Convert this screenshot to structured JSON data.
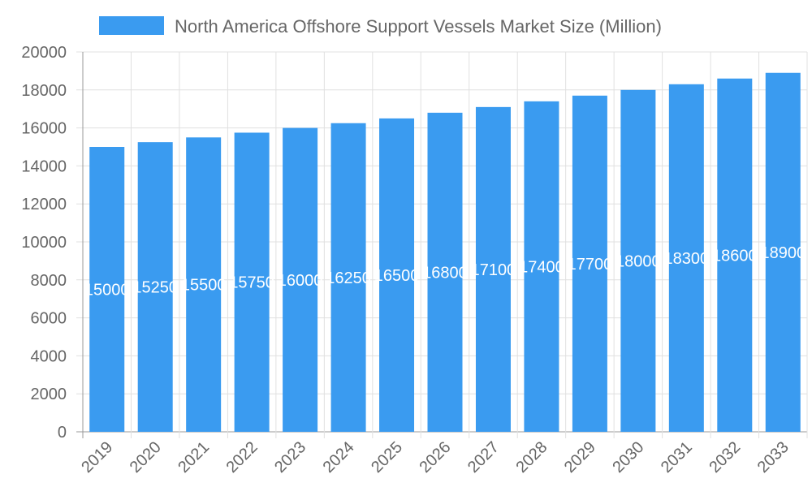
{
  "chart_data": {
    "type": "bar",
    "title": "",
    "legend": {
      "label": "North America Offshore Support Vessels Market Size (Million)",
      "position": "top"
    },
    "categories": [
      "2019",
      "2020",
      "2021",
      "2022",
      "2023",
      "2024",
      "2025",
      "2026",
      "2027",
      "2028",
      "2029",
      "2030",
      "2031",
      "2032",
      "2033"
    ],
    "values": [
      15000,
      15250,
      15500,
      15750,
      16000,
      16250,
      16500,
      16800,
      17100,
      17400,
      17700,
      18000,
      18300,
      18600,
      18900
    ],
    "xlabel": "",
    "ylabel": "",
    "ylim": [
      0,
      20000
    ],
    "yticks": [
      0,
      2000,
      4000,
      6000,
      8000,
      10000,
      12000,
      14000,
      16000,
      18000,
      20000
    ],
    "grid": true,
    "colors": {
      "bar": "#3a9bf0",
      "grid": "#e0e0e0",
      "axis": "#999999",
      "text": "#666666"
    }
  }
}
